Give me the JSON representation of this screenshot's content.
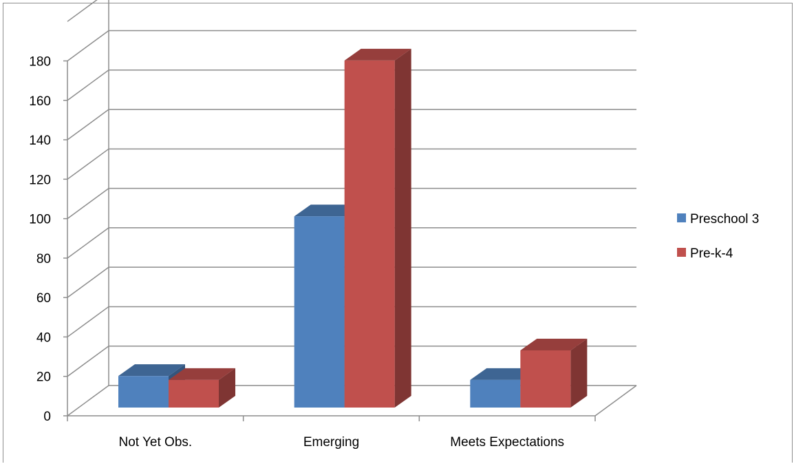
{
  "chart_data": {
    "type": "bar",
    "style": "3d-clustered-column",
    "categories": [
      "Not Yet Obs.",
      "Emerging",
      "Meets Expectations"
    ],
    "series": [
      {
        "name": "Preschool 3",
        "values": [
          16,
          97,
          14
        ],
        "color": "#4f81bd"
      },
      {
        "name": "Pre-k-4",
        "values": [
          14,
          176,
          29
        ],
        "color": "#c0504d"
      }
    ],
    "ylim": [
      0,
      180
    ],
    "yticks": [
      0,
      20,
      40,
      60,
      80,
      100,
      120,
      140,
      160,
      180
    ],
    "ymax_wall": 200,
    "grid": true,
    "legend_position": "right",
    "title": "",
    "xlabel": "",
    "ylabel": ""
  }
}
